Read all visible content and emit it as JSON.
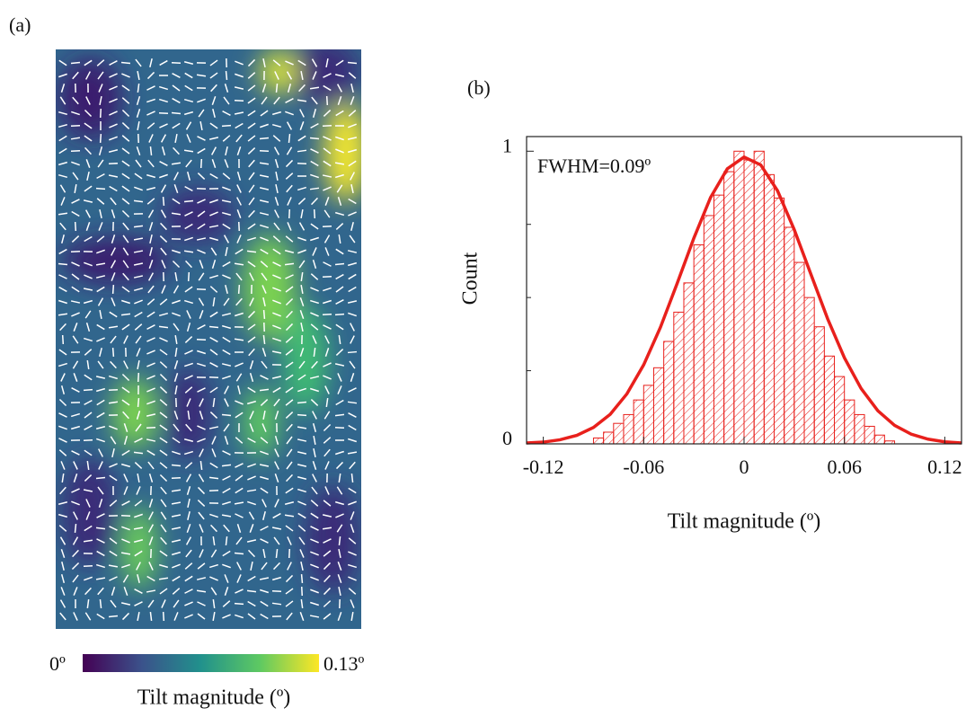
{
  "panel_a": {
    "label": "(a)",
    "colorbar": {
      "min_label": "0º",
      "max_label": "0.13º",
      "title": "Tilt magnitude (º)"
    }
  },
  "chart_data": {
    "type": "histogram",
    "panel_label": "(b)",
    "annotation": "FWHM=0.09º",
    "x_label": "Tilt magnitude (º)",
    "y_label": "Count",
    "color": "#e8201c",
    "bins": [
      -0.09,
      -0.084,
      -0.078,
      -0.072,
      -0.066,
      -0.06,
      -0.054,
      -0.048,
      -0.042,
      -0.036,
      -0.03,
      -0.024,
      -0.018,
      -0.012,
      -0.006,
      0,
      0.006,
      0.012,
      0.018,
      0.024,
      0.03,
      0.036,
      0.042,
      0.048,
      0.054,
      0.06,
      0.066,
      0.072,
      0.078,
      0.084,
      0.09
    ],
    "values": [
      0.02,
      0.04,
      0.07,
      0.1,
      0.15,
      0.2,
      0.26,
      0.35,
      0.45,
      0.55,
      0.68,
      0.78,
      0.85,
      0.93,
      1.0,
      0.97,
      1.0,
      0.92,
      0.84,
      0.74,
      0.62,
      0.5,
      0.4,
      0.3,
      0.23,
      0.15,
      0.1,
      0.06,
      0.03,
      0.01
    ],
    "fit": {
      "x": [
        -0.13,
        -0.12,
        -0.11,
        -0.1,
        -0.09,
        -0.08,
        -0.07,
        -0.06,
        -0.05,
        -0.04,
        -0.03,
        -0.02,
        -0.01,
        0,
        0.01,
        0.02,
        0.03,
        0.04,
        0.05,
        0.06,
        0.07,
        0.08,
        0.09,
        0.1,
        0.11,
        0.12,
        0.13
      ],
      "values": [
        0.003,
        0.006,
        0.014,
        0.029,
        0.056,
        0.101,
        0.171,
        0.27,
        0.398,
        0.548,
        0.703,
        0.842,
        0.94,
        0.98,
        0.953,
        0.865,
        0.732,
        0.579,
        0.427,
        0.294,
        0.189,
        0.113,
        0.063,
        0.033,
        0.016,
        0.007,
        0.003
      ]
    },
    "xlim": [
      -0.13,
      0.13
    ],
    "ylim": [
      0,
      1.05
    ],
    "xticks": [
      -0.12,
      -0.06,
      0,
      0.06,
      0.12
    ],
    "yticks": [
      0,
      1
    ],
    "minor_yticks": [
      0.25,
      0.5,
      0.75
    ]
  }
}
